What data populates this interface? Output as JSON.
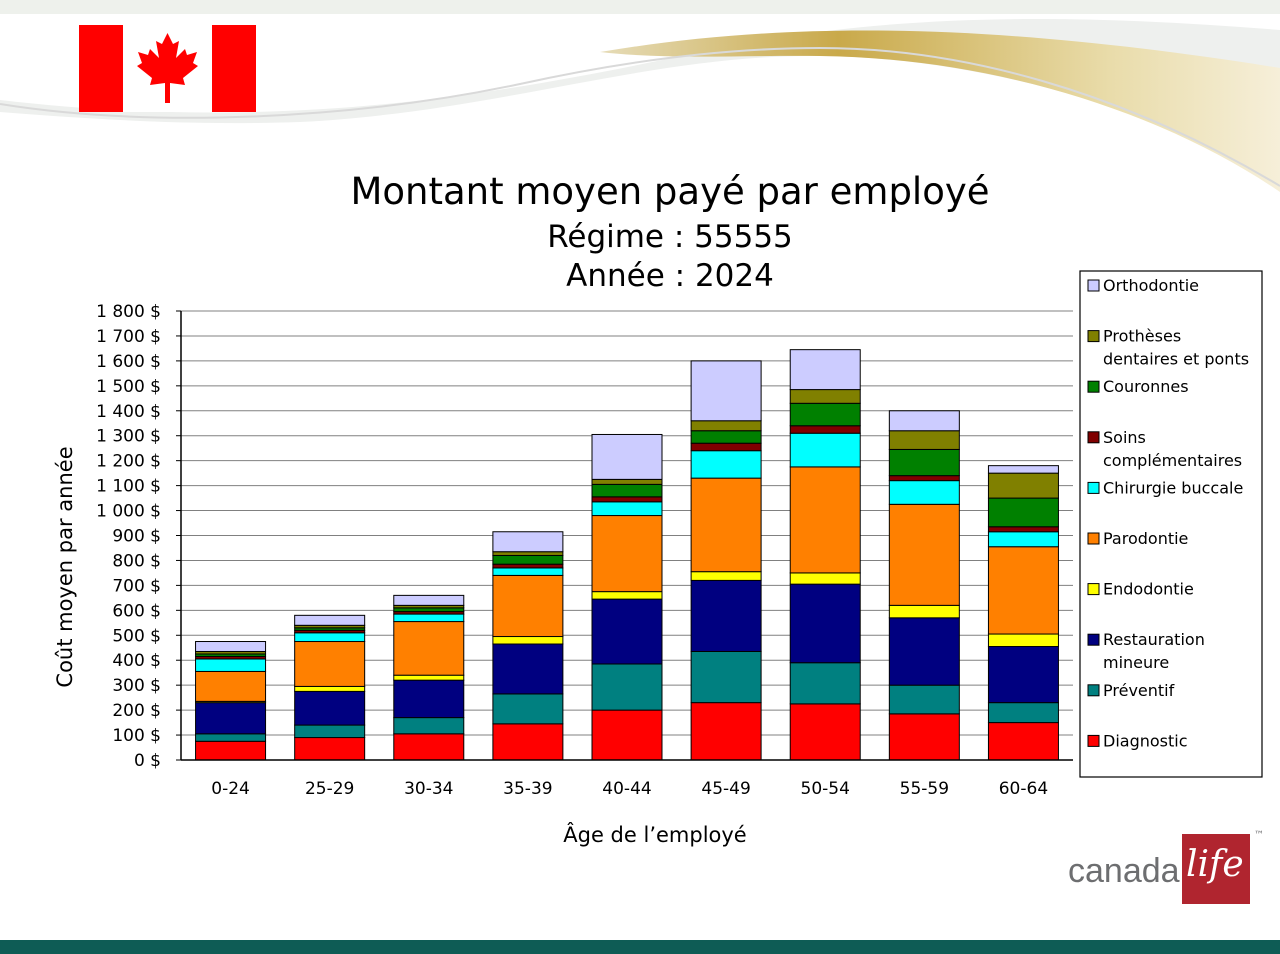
{
  "chart_data": {
    "type": "bar",
    "stacked": true,
    "title": "Montant moyen payé par employé",
    "subtitle_1": "Régime : 55555",
    "subtitle_2": "Année : 2024",
    "xlabel": "Âge de l’employé",
    "ylabel": "Coût moyen par année",
    "ylim": [
      0,
      1800
    ],
    "y_ticks": [
      "0 $",
      "100 $",
      "200 $",
      "300 $",
      "400 $",
      "500 $",
      "600 $",
      "700 $",
      "800 $",
      "900 $",
      "1 000 $",
      "1 100 $",
      "1 200 $",
      "1 300 $",
      "1 400 $",
      "1 500 $",
      "1 600 $",
      "1 700 $",
      "1 800 $"
    ],
    "categories": [
      "0-24",
      "25-29",
      "30-34",
      "35-39",
      "40-44",
      "45-49",
      "50-54",
      "55-59",
      "60-64"
    ],
    "grid": true,
    "legend_position": "right",
    "series": [
      {
        "name": "Diagnostic",
        "color": "#ff0000",
        "values": [
          75,
          90,
          105,
          145,
          200,
          230,
          225,
          185,
          150
        ]
      },
      {
        "name": "Préventif",
        "color": "#008080",
        "values": [
          30,
          50,
          65,
          120,
          185,
          205,
          165,
          115,
          80
        ]
      },
      {
        "name": "Restauration mineure",
        "color": "#000080",
        "values": [
          125,
          135,
          150,
          200,
          260,
          285,
          315,
          270,
          225
        ]
      },
      {
        "name": "Endodontie",
        "color": "#ffff00",
        "values": [
          5,
          20,
          20,
          30,
          30,
          35,
          45,
          50,
          50
        ]
      },
      {
        "name": "Parodontie",
        "color": "#ff8000",
        "values": [
          120,
          180,
          215,
          245,
          305,
          375,
          425,
          405,
          350
        ]
      },
      {
        "name": "Chirurgie buccale",
        "color": "#00ffff",
        "values": [
          50,
          35,
          30,
          30,
          55,
          110,
          135,
          95,
          60
        ]
      },
      {
        "name": "Soins complémentaires",
        "color": "#800000",
        "values": [
          10,
          10,
          10,
          15,
          20,
          30,
          30,
          20,
          20
        ]
      },
      {
        "name": "Couronnes",
        "color": "#008000",
        "values": [
          10,
          10,
          15,
          35,
          50,
          50,
          90,
          105,
          115
        ]
      },
      {
        "name": "Prothèses dentaires et ponts",
        "color": "#808000",
        "values": [
          10,
          10,
          10,
          15,
          20,
          40,
          55,
          75,
          100
        ]
      },
      {
        "name": "Orthodontie",
        "color": "#ccccff",
        "values": [
          40,
          40,
          40,
          80,
          180,
          240,
          160,
          80,
          30
        ]
      }
    ]
  },
  "logo": {
    "word": "canada",
    "script": "life",
    "tm": "™"
  }
}
